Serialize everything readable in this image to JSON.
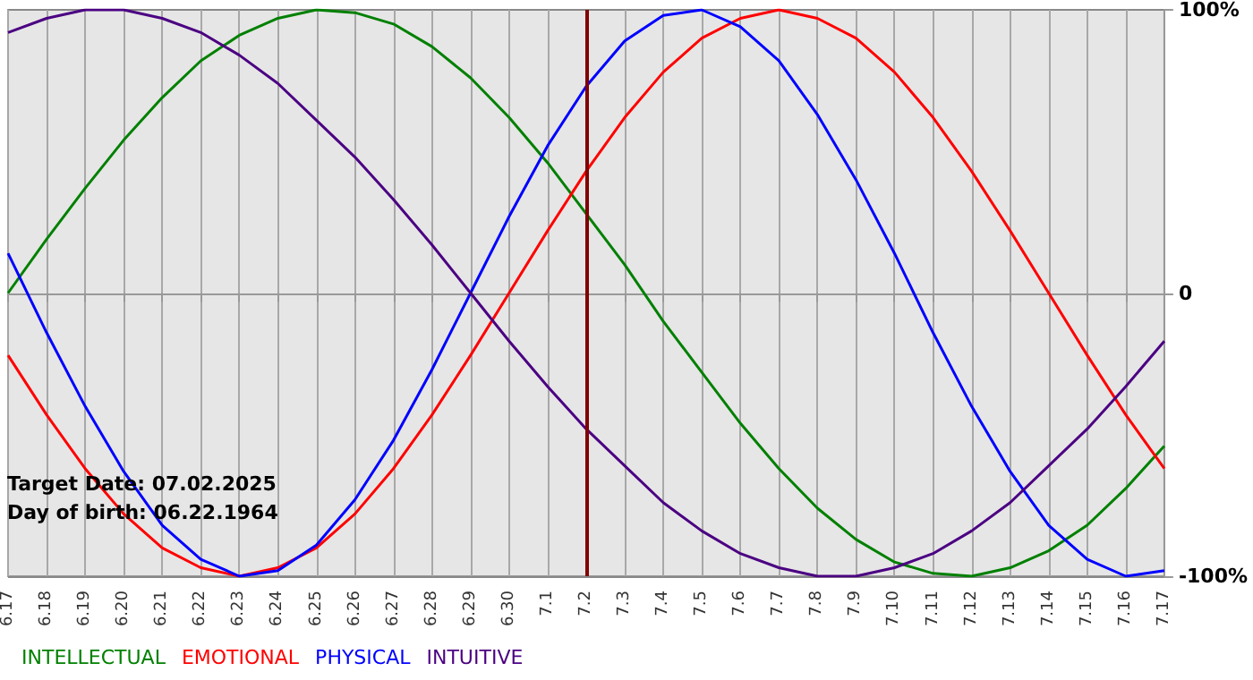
{
  "chart_data": {
    "type": "line",
    "categories": [
      "6.17",
      "6.18",
      "6.19",
      "6.20",
      "6.21",
      "6.22",
      "6.23",
      "6.24",
      "6.25",
      "6.26",
      "6.27",
      "6.28",
      "6.29",
      "6.30",
      "7.1",
      "7.2",
      "7.3",
      "7.4",
      "7.5",
      "7.6",
      "7.7",
      "7.8",
      "7.9",
      "7.10",
      "7.11",
      "7.12",
      "7.13",
      "7.14",
      "7.15",
      "7.16",
      "7.17"
    ],
    "series": [
      {
        "name": "INTELLECTUAL",
        "color": "#008000",
        "values": [
          0,
          19,
          37,
          54,
          69,
          82,
          91,
          97,
          100,
          99,
          95,
          87,
          76,
          62,
          46,
          28,
          10,
          -10,
          -28,
          -46,
          -62,
          -76,
          -87,
          -95,
          -99,
          -100,
          -97,
          -91,
          -82,
          -69,
          -54
        ]
      },
      {
        "name": "EMOTIONAL",
        "color": "#ff0000",
        "values": [
          -22,
          -43,
          -62,
          -78,
          -90,
          -97,
          -100,
          -97,
          -90,
          -78,
          -62,
          -43,
          -22,
          0,
          22,
          43,
          62,
          78,
          90,
          97,
          100,
          97,
          90,
          78,
          62,
          43,
          22,
          0,
          -22,
          -43,
          -62
        ]
      },
      {
        "name": "PHYSICAL",
        "color": "#0000ff",
        "values": [
          14,
          -14,
          -40,
          -63,
          -82,
          -94,
          -100,
          -98,
          -89,
          -73,
          -52,
          -27,
          0,
          27,
          52,
          73,
          89,
          98,
          100,
          94,
          82,
          63,
          40,
          14,
          -14,
          -40,
          -63,
          -82,
          -94,
          -100,
          -98
        ]
      },
      {
        "name": "INTUITIVE",
        "color": "#4b0082",
        "values": [
          92,
          97,
          100,
          100,
          97,
          92,
          84,
          74,
          61,
          48,
          33,
          17,
          0,
          -17,
          -33,
          -48,
          -61,
          -74,
          -84,
          -92,
          -97,
          -100,
          -100,
          -97,
          -92,
          -84,
          -74,
          -61,
          -48,
          -33,
          -17
        ]
      }
    ],
    "ylim": [
      -100,
      100
    ],
    "yticks": [
      {
        "value": 100,
        "label": "100%"
      },
      0,
      {
        "value": -100,
        "label": "-100%"
      }
    ],
    "ref_lines": [
      {
        "axis": "x",
        "value": "7.2",
        "color": "#800000"
      }
    ],
    "annotations": [
      "Target Date: 07.02.2025",
      "Day of birth: 06.22.1964"
    ],
    "grid": true,
    "legend": "bottom left",
    "marker": "none",
    "line_style": "solid"
  }
}
